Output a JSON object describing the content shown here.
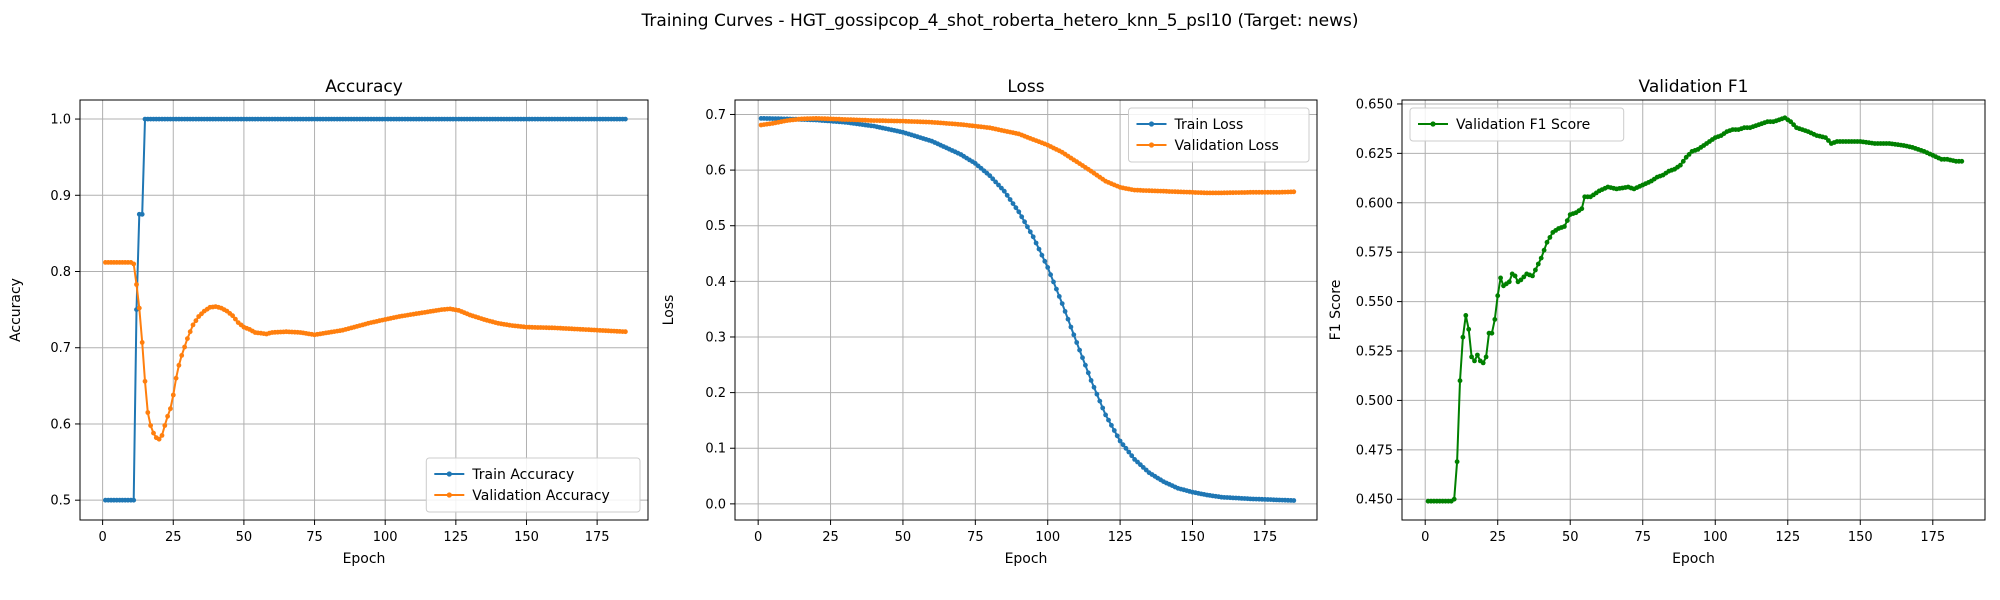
{
  "figure": {
    "suptitle": "Training Curves - HGT_gossipcop_4_shot_roberta_hetero_knn_5_psl10 (Target: news)"
  },
  "colors": {
    "blue": "#1f77b4",
    "orange": "#ff7f0e",
    "green": "#008000",
    "grid": "#b0b0b0"
  },
  "chart_data": [
    {
      "type": "line",
      "title": "Accuracy",
      "xlabel": "Epoch",
      "ylabel": "Accuracy",
      "grid": true,
      "legend_loc": "lower-right",
      "xlim": [
        -8,
        193
      ],
      "ylim": [
        0.474,
        1.025
      ],
      "xticks": [
        0,
        25,
        50,
        75,
        100,
        125,
        150,
        175
      ],
      "yticks": [
        0.5,
        0.6,
        0.7,
        0.8,
        0.9,
        1.0
      ],
      "ytick_decimals": 1,
      "series": [
        {
          "name": "Train Accuracy",
          "color": "blue",
          "points": [
            [
              1,
              0.5
            ],
            [
              11,
              0.5
            ],
            [
              12,
              0.75
            ],
            [
              13,
              0.875
            ],
            [
              14,
              0.875
            ],
            [
              15,
              1.0
            ],
            [
              185,
              1.0
            ]
          ]
        },
        {
          "name": "Validation Accuracy",
          "color": "orange",
          "points": [
            [
              1,
              0.812
            ],
            [
              10,
              0.812
            ],
            [
              11,
              0.81
            ],
            [
              12,
              0.783
            ],
            [
              13,
              0.752
            ],
            [
              14,
              0.707
            ],
            [
              15,
              0.656
            ],
            [
              16,
              0.615
            ],
            [
              17,
              0.598
            ],
            [
              18,
              0.588
            ],
            [
              19,
              0.582
            ],
            [
              20,
              0.58
            ],
            [
              21,
              0.585
            ],
            [
              22,
              0.598
            ],
            [
              23,
              0.61
            ],
            [
              24,
              0.62
            ],
            [
              25,
              0.638
            ],
            [
              26,
              0.66
            ],
            [
              27,
              0.677
            ],
            [
              28,
              0.69
            ],
            [
              30,
              0.712
            ],
            [
              32,
              0.73
            ],
            [
              34,
              0.741
            ],
            [
              36,
              0.748
            ],
            [
              38,
              0.753
            ],
            [
              40,
              0.754
            ],
            [
              42,
              0.752
            ],
            [
              44,
              0.748
            ],
            [
              46,
              0.742
            ],
            [
              48,
              0.733
            ],
            [
              50,
              0.727
            ],
            [
              52,
              0.724
            ],
            [
              54,
              0.72
            ],
            [
              56,
              0.719
            ],
            [
              58,
              0.718
            ],
            [
              60,
              0.72
            ],
            [
              65,
              0.721
            ],
            [
              70,
              0.72
            ],
            [
              75,
              0.717
            ],
            [
              80,
              0.72
            ],
            [
              85,
              0.723
            ],
            [
              90,
              0.728
            ],
            [
              95,
              0.733
            ],
            [
              100,
              0.737
            ],
            [
              105,
              0.741
            ],
            [
              110,
              0.744
            ],
            [
              115,
              0.747
            ],
            [
              120,
              0.75
            ],
            [
              123,
              0.751
            ],
            [
              126,
              0.749
            ],
            [
              130,
              0.743
            ],
            [
              135,
              0.737
            ],
            [
              140,
              0.732
            ],
            [
              145,
              0.729
            ],
            [
              150,
              0.727
            ],
            [
              160,
              0.726
            ],
            [
              170,
              0.724
            ],
            [
              180,
              0.722
            ],
            [
              185,
              0.721
            ]
          ]
        }
      ]
    },
    {
      "type": "line",
      "title": "Loss",
      "xlabel": "Epoch",
      "ylabel": "Loss",
      "grid": true,
      "legend_loc": "upper-right",
      "xlim": [
        -8,
        193
      ],
      "ylim": [
        -0.029,
        0.726
      ],
      "xticks": [
        0,
        25,
        50,
        75,
        100,
        125,
        150,
        175
      ],
      "yticks": [
        0.0,
        0.1,
        0.2,
        0.3,
        0.4,
        0.5,
        0.6,
        0.7
      ],
      "ytick_decimals": 1,
      "series": [
        {
          "name": "Train Loss",
          "color": "blue",
          "points": [
            [
              1,
              0.693
            ],
            [
              10,
              0.692
            ],
            [
              20,
              0.69
            ],
            [
              30,
              0.686
            ],
            [
              40,
              0.679
            ],
            [
              50,
              0.668
            ],
            [
              60,
              0.652
            ],
            [
              70,
              0.628
            ],
            [
              75,
              0.612
            ],
            [
              80,
              0.59
            ],
            [
              85,
              0.562
            ],
            [
              90,
              0.525
            ],
            [
              95,
              0.48
            ],
            [
              100,
              0.425
            ],
            [
              105,
              0.36
            ],
            [
              110,
              0.29
            ],
            [
              115,
              0.222
            ],
            [
              120,
              0.16
            ],
            [
              125,
              0.113
            ],
            [
              130,
              0.08
            ],
            [
              135,
              0.056
            ],
            [
              140,
              0.04
            ],
            [
              145,
              0.028
            ],
            [
              150,
              0.021
            ],
            [
              155,
              0.016
            ],
            [
              160,
              0.012
            ],
            [
              170,
              0.009
            ],
            [
              180,
              0.007
            ],
            [
              185,
              0.006
            ]
          ]
        },
        {
          "name": "Validation Loss",
          "color": "orange",
          "points": [
            [
              1,
              0.681
            ],
            [
              5,
              0.684
            ],
            [
              10,
              0.689
            ],
            [
              15,
              0.692
            ],
            [
              20,
              0.693
            ],
            [
              30,
              0.691
            ],
            [
              40,
              0.689
            ],
            [
              50,
              0.688
            ],
            [
              60,
              0.686
            ],
            [
              70,
              0.682
            ],
            [
              80,
              0.676
            ],
            [
              90,
              0.665
            ],
            [
              100,
              0.645
            ],
            [
              105,
              0.632
            ],
            [
              110,
              0.615
            ],
            [
              115,
              0.598
            ],
            [
              120,
              0.58
            ],
            [
              125,
              0.569
            ],
            [
              130,
              0.564
            ],
            [
              140,
              0.562
            ],
            [
              150,
              0.56
            ],
            [
              155,
              0.559
            ],
            [
              160,
              0.559
            ],
            [
              170,
              0.56
            ],
            [
              180,
              0.56
            ],
            [
              185,
              0.561
            ]
          ]
        }
      ]
    },
    {
      "type": "line",
      "title": "Validation F1",
      "xlabel": "Epoch",
      "ylabel": "F1 Score",
      "grid": true,
      "legend_loc": "upper-left",
      "xlim": [
        -8,
        193
      ],
      "ylim": [
        0.4395,
        0.652
      ],
      "xticks": [
        0,
        25,
        50,
        75,
        100,
        125,
        150,
        175
      ],
      "yticks": [
        0.45,
        0.475,
        0.5,
        0.525,
        0.55,
        0.575,
        0.6,
        0.625,
        0.65
      ],
      "ytick_decimals": 3,
      "series": [
        {
          "name": "Validation F1 Score",
          "color": "green",
          "points": [
            [
              1,
              0.449
            ],
            [
              9,
              0.449
            ],
            [
              10,
              0.45
            ],
            [
              11,
              0.469
            ],
            [
              12,
              0.51
            ],
            [
              13,
              0.532
            ],
            [
              14,
              0.543
            ],
            [
              15,
              0.536
            ],
            [
              16,
              0.522
            ],
            [
              17,
              0.52
            ],
            [
              18,
              0.523
            ],
            [
              19,
              0.52
            ],
            [
              20,
              0.519
            ],
            [
              21,
              0.522
            ],
            [
              22,
              0.534
            ],
            [
              23,
              0.534
            ],
            [
              24,
              0.541
            ],
            [
              25,
              0.553
            ],
            [
              26,
              0.562
            ],
            [
              27,
              0.558
            ],
            [
              28,
              0.559
            ],
            [
              29,
              0.56
            ],
            [
              30,
              0.564
            ],
            [
              31,
              0.563
            ],
            [
              32,
              0.56
            ],
            [
              33,
              0.561
            ],
            [
              35,
              0.564
            ],
            [
              37,
              0.563
            ],
            [
              38,
              0.566
            ],
            [
              40,
              0.572
            ],
            [
              42,
              0.58
            ],
            [
              44,
              0.585
            ],
            [
              46,
              0.587
            ],
            [
              48,
              0.588
            ],
            [
              50,
              0.594
            ],
            [
              52,
              0.595
            ],
            [
              54,
              0.597
            ],
            [
              55,
              0.603
            ],
            [
              57,
              0.603
            ],
            [
              60,
              0.606
            ],
            [
              63,
              0.608
            ],
            [
              66,
              0.607
            ],
            [
              70,
              0.608
            ],
            [
              72,
              0.607
            ],
            [
              75,
              0.609
            ],
            [
              78,
              0.611
            ],
            [
              80,
              0.613
            ],
            [
              82,
              0.614
            ],
            [
              84,
              0.616
            ],
            [
              86,
              0.617
            ],
            [
              88,
              0.619
            ],
            [
              90,
              0.623
            ],
            [
              92,
              0.626
            ],
            [
              94,
              0.627
            ],
            [
              96,
              0.629
            ],
            [
              98,
              0.631
            ],
            [
              100,
              0.633
            ],
            [
              102,
              0.634
            ],
            [
              104,
              0.636
            ],
            [
              106,
              0.637
            ],
            [
              108,
              0.637
            ],
            [
              110,
              0.638
            ],
            [
              112,
              0.638
            ],
            [
              114,
              0.639
            ],
            [
              116,
              0.64
            ],
            [
              118,
              0.641
            ],
            [
              120,
              0.641
            ],
            [
              122,
              0.642
            ],
            [
              124,
              0.643
            ],
            [
              126,
              0.641
            ],
            [
              128,
              0.638
            ],
            [
              130,
              0.637
            ],
            [
              132,
              0.636
            ],
            [
              135,
              0.634
            ],
            [
              138,
              0.633
            ],
            [
              140,
              0.63
            ],
            [
              142,
              0.631
            ],
            [
              145,
              0.631
            ],
            [
              150,
              0.631
            ],
            [
              155,
              0.63
            ],
            [
              160,
              0.63
            ],
            [
              165,
              0.629
            ],
            [
              168,
              0.628
            ],
            [
              170,
              0.627
            ],
            [
              172,
              0.626
            ],
            [
              175,
              0.624
            ],
            [
              178,
              0.622
            ],
            [
              180,
              0.622
            ],
            [
              183,
              0.621
            ],
            [
              185,
              0.621
            ]
          ]
        }
      ]
    }
  ]
}
